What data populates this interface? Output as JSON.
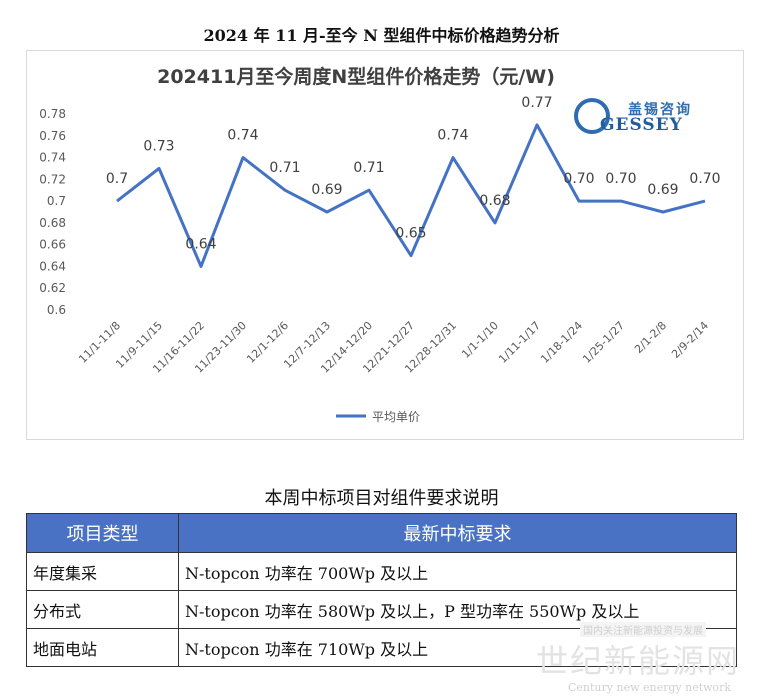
{
  "page_title": "2024 年 11 月-至今 N 型组件中标价格趋势分析",
  "logo": {
    "cn": "盖锡咨询",
    "en": "GESSEY"
  },
  "chart_data": {
    "type": "line",
    "title": "202411月至今周度N型组件价格走势（元/W)",
    "categories": [
      "11/1-11/8",
      "11/9-11/15",
      "11/16-11/22",
      "11/23-11/30",
      "12/1-12/6",
      "12/7-12/13",
      "12/14-12/20",
      "12/21-12/27",
      "12/28-12/31",
      "1/1-1/10",
      "1/11-1/17",
      "1/18-1/24",
      "1/25-1/27",
      "2/1-2/8",
      "2/9-2/14"
    ],
    "series": [
      {
        "name": "平均单价",
        "values": [
          0.7,
          0.73,
          0.64,
          0.74,
          0.71,
          0.69,
          0.71,
          0.65,
          0.74,
          0.68,
          0.77,
          0.7,
          0.7,
          0.69,
          0.7
        ],
        "labels": [
          "0.7",
          "0.73",
          "0.64",
          "0.74",
          "0.71",
          "0.69",
          "0.71",
          "0.65",
          "0.74",
          "0.68",
          "0.77",
          "0.70",
          "0.70",
          "0.69",
          "0.70"
        ],
        "color": "#4472c4"
      }
    ],
    "yticks": [
      "0.6",
      "0.62",
      "0.64",
      "0.66",
      "0.68",
      "0.7",
      "0.72",
      "0.74",
      "0.76",
      "0.78"
    ],
    "ylim": [
      0.6,
      0.78
    ],
    "grid": false,
    "legend": "bottom",
    "xlabel": "",
    "ylabel": ""
  },
  "section_title": "本周中标项目对组件要求说明",
  "table": {
    "headers": [
      "项目类型",
      "最新中标要求"
    ],
    "rows": [
      [
        "年度集采",
        "N-topcon 功率在 700Wp 及以上"
      ],
      [
        "分布式",
        "N-topcon 功率在 580Wp 及以上，P 型功率在 550Wp 及以上"
      ],
      [
        "地面电站",
        "N-topcon 功率在 710Wp 及以上"
      ]
    ]
  },
  "watermark": {
    "cn": "世纪新能源网",
    "en": "Century new energy network",
    "small": "国内关注新能源投资与发展"
  }
}
